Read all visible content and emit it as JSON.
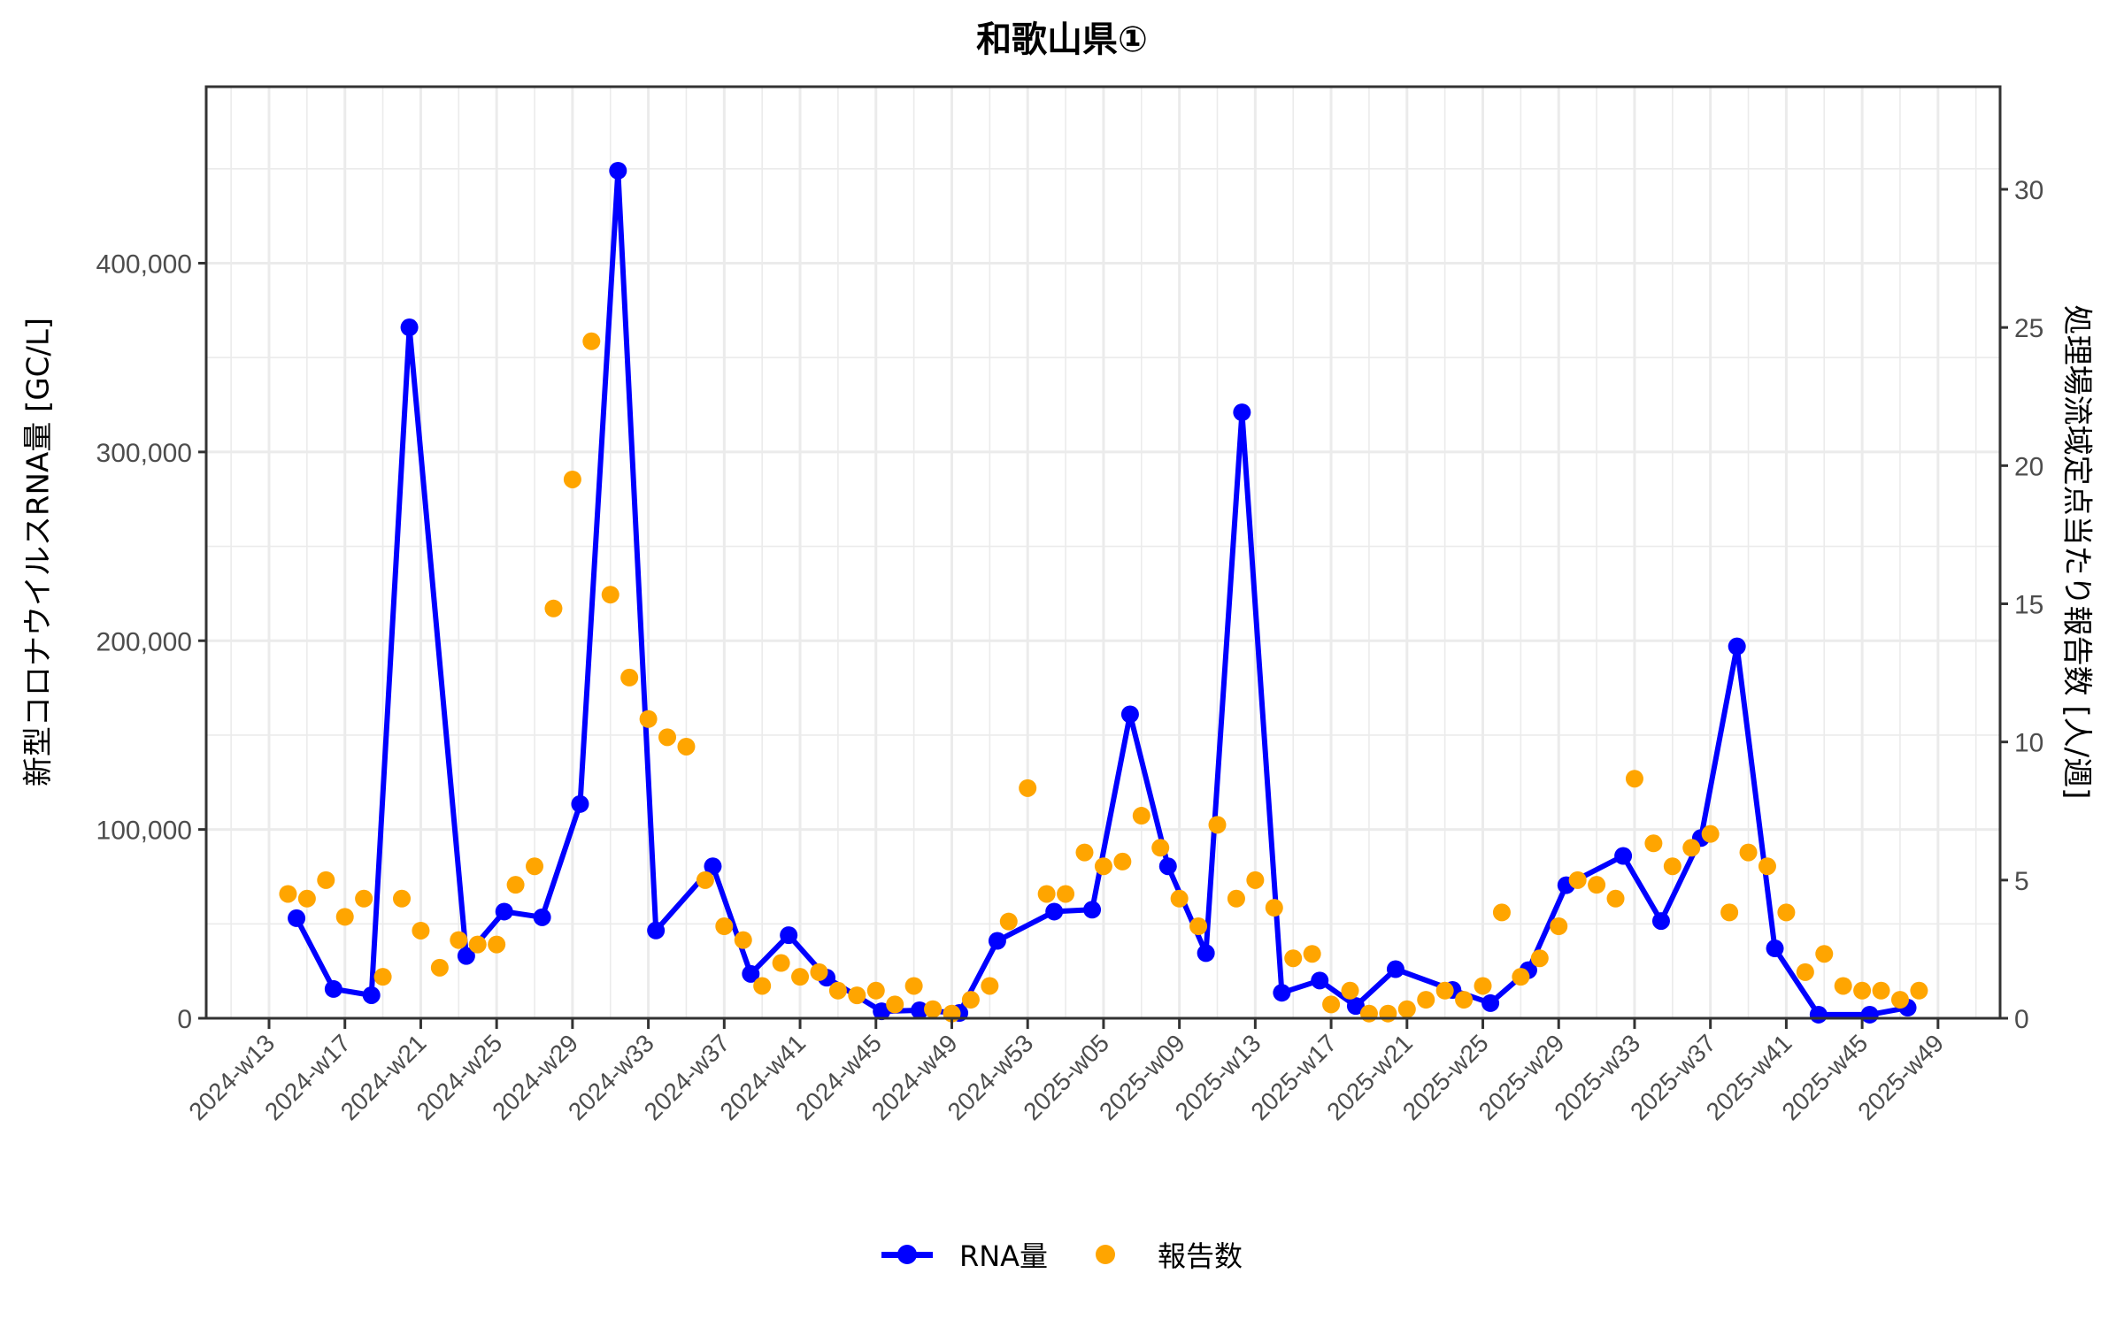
{
  "title": "和歌山県①",
  "legend": {
    "items": [
      {
        "label": "RNA量",
        "color": "#0000ff",
        "kind": "line-point"
      },
      {
        "label": "報告数",
        "color": "#ffa500",
        "kind": "point"
      }
    ]
  },
  "axes": {
    "left_label": "新型コロナウイルスRNA量 [GC/L]",
    "right_label": "処理場流域定点当たり報告数 [人/週]"
  },
  "chart_data": {
    "type": "line",
    "title": "和歌山県①",
    "xlabel": "",
    "ylabel": "新型コロナウイルスRNA量 [GC/L]",
    "y2label": "処理場流域定点当たり報告数 [人/週]",
    "ylim": [
      0,
      490000
    ],
    "y2lim": [
      0,
      33.4
    ],
    "yticks": [
      0,
      100000,
      200000,
      300000,
      400000
    ],
    "ytick_labels": [
      "0",
      "100,000",
      "200,000",
      "300,000",
      "400,000"
    ],
    "y2ticks": [
      0,
      5,
      10,
      15,
      20,
      25,
      30
    ],
    "y2tick_labels": [
      "0",
      "5",
      "10",
      "15",
      "20",
      "25",
      "30"
    ],
    "xtick_labels": [
      "2024-w13",
      "2024-w17",
      "2024-w21",
      "2024-w25",
      "2024-w29",
      "2024-w33",
      "2024-w37",
      "2024-w41",
      "2024-w45",
      "2024-w49",
      "2024-w53",
      "2025-w05",
      "2025-w09",
      "2025-w13",
      "2025-w17",
      "2025-w21",
      "2025-w25",
      "2025-w29",
      "2025-w33",
      "2025-w37",
      "2025-w41",
      "2025-w45",
      "2025-w49"
    ],
    "xtick_index": [
      0,
      4,
      8,
      12,
      16,
      20,
      24,
      28,
      32,
      36,
      40,
      44,
      48,
      52,
      56,
      60,
      64,
      68,
      72,
      76,
      80,
      84,
      88
    ],
    "grid": true,
    "legend_position": "bottom",
    "series": [
      {
        "name": "RNA量",
        "axis": "left",
        "style": "line+points",
        "color": "#0000ff",
        "x": [
          "2024-w14",
          "2024-w16",
          "2024-w18",
          "2024-w20",
          "2024-w23",
          "2024-w25",
          "2024-w27",
          "2024-w29",
          "2024-w31",
          "2024-w33",
          "2024-w36",
          "2024-w38",
          "2024-w40",
          "2024-w42",
          "2024-w45",
          "2024-w47",
          "2024-w49",
          "2024-w51",
          "2025-w02",
          "2025-w04",
          "2025-w06",
          "2025-w08",
          "2025-w10",
          "2025-w12",
          "2025-w14",
          "2025-w16",
          "2025-w18",
          "2025-w20",
          "2025-w23",
          "2025-w25",
          "2025-w27",
          "2025-w29",
          "2025-w32",
          "2025-w34",
          "2025-w36",
          "2025-w38",
          "2025-w40",
          "2025-w42",
          "2025-w45",
          "2025-w47"
        ],
        "x_index": [
          1.45,
          3.4,
          5.4,
          7.4,
          10.4,
          12.4,
          14.4,
          16.4,
          18.4,
          20.4,
          23.4,
          25.4,
          27.4,
          29.4,
          32.3,
          34.3,
          36.4,
          38.4,
          41.4,
          43.4,
          45.4,
          47.4,
          49.4,
          51.3,
          53.4,
          55.4,
          57.3,
          59.4,
          62.4,
          64.4,
          66.4,
          68.4,
          71.4,
          73.4,
          75.5,
          77.4,
          79.4,
          81.7,
          84.4,
          86.4
        ],
        "values": [
          53000,
          15500,
          12200,
          366000,
          33000,
          56500,
          53500,
          113500,
          449000,
          46500,
          80500,
          23500,
          44000,
          21500,
          3700,
          4200,
          2800,
          41000,
          56500,
          57500,
          161000,
          80500,
          34500,
          321000,
          13500,
          20000,
          6500,
          26000,
          15000,
          8000,
          25500,
          70500,
          86000,
          51500,
          95500,
          197000,
          37000,
          1900,
          1900,
          5600
        ]
      },
      {
        "name": "報告数",
        "axis": "right",
        "style": "points",
        "color": "#ffa500",
        "x": [
          "2024-w14",
          "2024-w15",
          "2024-w16",
          "2024-w17",
          "2024-w18",
          "2024-w19",
          "2024-w20",
          "2024-w21",
          "2024-w22",
          "2024-w23",
          "2024-w24",
          "2024-w25",
          "2024-w26",
          "2024-w27",
          "2024-w28",
          "2024-w29",
          "2024-w30",
          "2024-w31",
          "2024-w32",
          "2024-w33",
          "2024-w34",
          "2024-w35",
          "2024-w36",
          "2024-w37",
          "2024-w38",
          "2024-w39",
          "2024-w40",
          "2024-w41",
          "2024-w42",
          "2024-w43",
          "2024-w44",
          "2024-w45",
          "2024-w46",
          "2024-w47",
          "2024-w48",
          "2024-w49",
          "2024-w50",
          "2024-w51",
          "2024-w52",
          "2024-w53",
          "2025-w02",
          "2025-w03",
          "2025-w04",
          "2025-w05",
          "2025-w06",
          "2025-w07",
          "2025-w08",
          "2025-w09",
          "2025-w10",
          "2025-w11",
          "2025-w12",
          "2025-w13",
          "2025-w14",
          "2025-w15",
          "2025-w16",
          "2025-w17",
          "2025-w18",
          "2025-w19",
          "2025-w20",
          "2025-w21",
          "2025-w22",
          "2025-w23",
          "2025-w24",
          "2025-w25",
          "2025-w26",
          "2025-w27",
          "2025-w28",
          "2025-w29",
          "2025-w30",
          "2025-w31",
          "2025-w32",
          "2025-w33",
          "2025-w34",
          "2025-w35",
          "2025-w36",
          "2025-w37",
          "2025-w38",
          "2025-w39",
          "2025-w40",
          "2025-w41",
          "2025-w42",
          "2025-w43",
          "2025-w44",
          "2025-w45",
          "2025-w46",
          "2025-w47",
          "2025-w48"
        ],
        "x_index": [
          1,
          2,
          3,
          4,
          5,
          6,
          7,
          8,
          9,
          10,
          11,
          12,
          13,
          14,
          15,
          16,
          17,
          18,
          19,
          20,
          21,
          22,
          23,
          24,
          25,
          26,
          27,
          28,
          29,
          30,
          31,
          32,
          33,
          34,
          35,
          36,
          37,
          38,
          39,
          40,
          41,
          42,
          43,
          44,
          45,
          46,
          47,
          48,
          49,
          50,
          51,
          52,
          53,
          54,
          55,
          56,
          57,
          58,
          59,
          60,
          61,
          62,
          63,
          64,
          65,
          66,
          67,
          68,
          69,
          70,
          71,
          72,
          73,
          74,
          75,
          76,
          77,
          78,
          79,
          80,
          81,
          82,
          83,
          84,
          85,
          86,
          87
        ],
        "values": [
          4.5,
          4.33,
          5.0,
          3.67,
          4.33,
          1.5,
          4.33,
          3.17,
          1.83,
          2.83,
          2.67,
          2.67,
          4.83,
          5.5,
          14.83,
          19.5,
          24.5,
          15.33,
          12.33,
          10.83,
          10.17,
          9.83,
          5.0,
          3.33,
          2.83,
          1.17,
          2.0,
          1.5,
          1.67,
          1.0,
          0.83,
          1.0,
          0.5,
          1.17,
          0.33,
          0.17,
          0.67,
          1.17,
          3.5,
          8.33,
          4.5,
          4.5,
          6.0,
          5.5,
          5.67,
          7.33,
          6.17,
          4.33,
          3.33,
          7.0,
          4.33,
          5.0,
          4.0,
          2.17,
          2.33,
          0.5,
          1.0,
          0.17,
          0.17,
          0.33,
          0.67,
          1.0,
          0.67,
          1.17,
          3.83,
          1.5,
          2.17,
          3.33,
          5.0,
          4.83,
          4.33,
          8.67,
          6.33,
          5.5,
          6.17,
          6.67,
          3.83,
          6.0,
          5.5,
          3.83,
          1.67,
          2.33,
          1.17,
          1.0,
          1.0,
          0.67,
          1.0
        ]
      }
    ]
  }
}
